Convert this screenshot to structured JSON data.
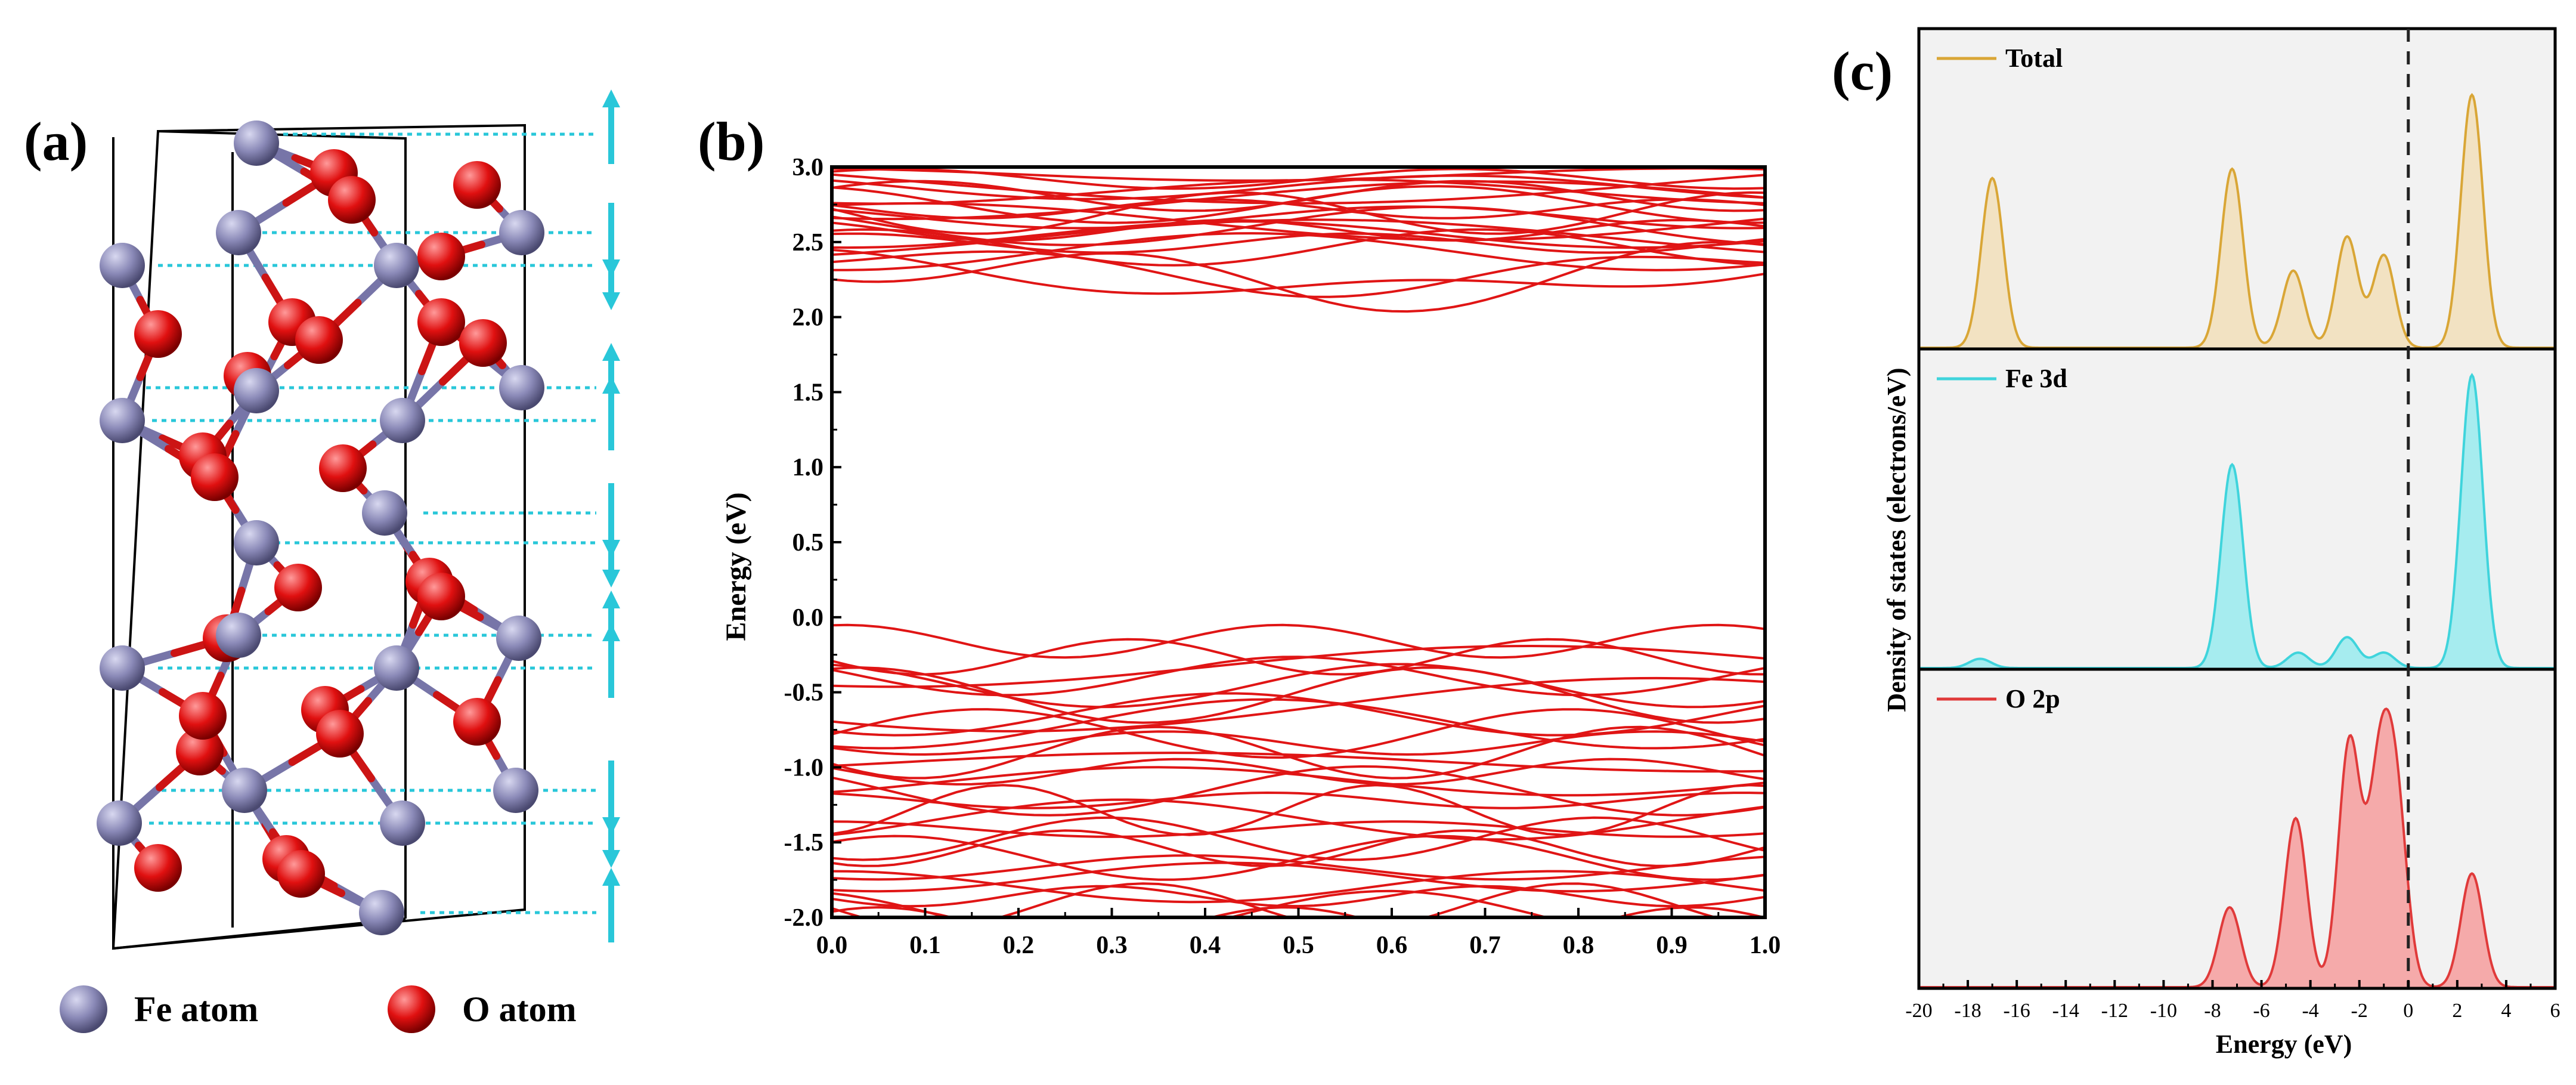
{
  "panels": {
    "a": {
      "label": "(a)"
    },
    "b": {
      "label": "(b)"
    },
    "c": {
      "label": "(c)"
    }
  },
  "legend_atoms": {
    "fe": "Fe atom",
    "o": "O atom"
  },
  "colors": {
    "fe": "#8a89b7",
    "o": "#e01010",
    "spin_arrow": "#29c7d9",
    "cell": "#000000",
    "band": "#e01515",
    "total": "#d9a636",
    "total_fill": "#f2e2c2",
    "fe3d": "#3fd4dc",
    "fe3d_fill": "#a6ecef",
    "o2p": "#e03a3a",
    "o2p_fill": "#f5aaaa"
  },
  "chart_data": [
    {
      "panel": "b",
      "type": "line",
      "title": "",
      "xlabel": "",
      "ylabel": "Energy (eV)",
      "xlim": [
        0.0,
        1.0
      ],
      "ylim": [
        -2.0,
        3.0
      ],
      "x_ticks": [
        "0.0",
        "0.1",
        "0.2",
        "0.3",
        "0.4",
        "0.5",
        "0.6",
        "0.7",
        "0.8",
        "0.9",
        "1.0"
      ],
      "y_ticks": [
        "-2.0",
        "-1.5",
        "-1.0",
        "-0.5",
        "0.0",
        "0.5",
        "1.0",
        "1.5",
        "2.0",
        "2.5",
        "3.0"
      ],
      "band_gap": {
        "vbm": -0.15,
        "cbm": 2.1
      },
      "conduction_bands": {
        "count": 22,
        "range": [
          2.1,
          3.0
        ]
      },
      "valence_bands": {
        "count": 30,
        "range": [
          -2.0,
          -0.15
        ]
      }
    },
    {
      "panel": "c",
      "type": "area",
      "xlabel": "Energy (eV)",
      "ylabel": "Density of states (electrons/eV)",
      "xlim": [
        -20,
        6
      ],
      "x_ticks": [
        "-20",
        "-18",
        "-16",
        "-14",
        "-12",
        "-10",
        "-8",
        "-6",
        "-4",
        "-2",
        "0",
        "2",
        "4",
        "6"
      ],
      "fermi_level": 0,
      "series": [
        {
          "name": "Total",
          "peaks": [
            [
              -17.0,
              0.55
            ],
            [
              -7.2,
              0.58
            ],
            [
              -4.7,
              0.25
            ],
            [
              -2.5,
              0.36
            ],
            [
              -1.0,
              0.3
            ],
            [
              2.6,
              0.82
            ]
          ]
        },
        {
          "name": "Fe 3d",
          "peaks": [
            [
              -17.5,
              0.03
            ],
            [
              -7.2,
              0.66
            ],
            [
              -4.5,
              0.05
            ],
            [
              -2.5,
              0.1
            ],
            [
              -1.0,
              0.05
            ],
            [
              2.6,
              0.95
            ]
          ]
        },
        {
          "name": "O 2p",
          "peaks": [
            [
              -7.3,
              0.26
            ],
            [
              -4.6,
              0.55
            ],
            [
              -2.4,
              0.8
            ],
            [
              -1.2,
              0.64
            ],
            [
              -0.5,
              0.58
            ],
            [
              2.6,
              0.37
            ]
          ]
        }
      ]
    }
  ]
}
